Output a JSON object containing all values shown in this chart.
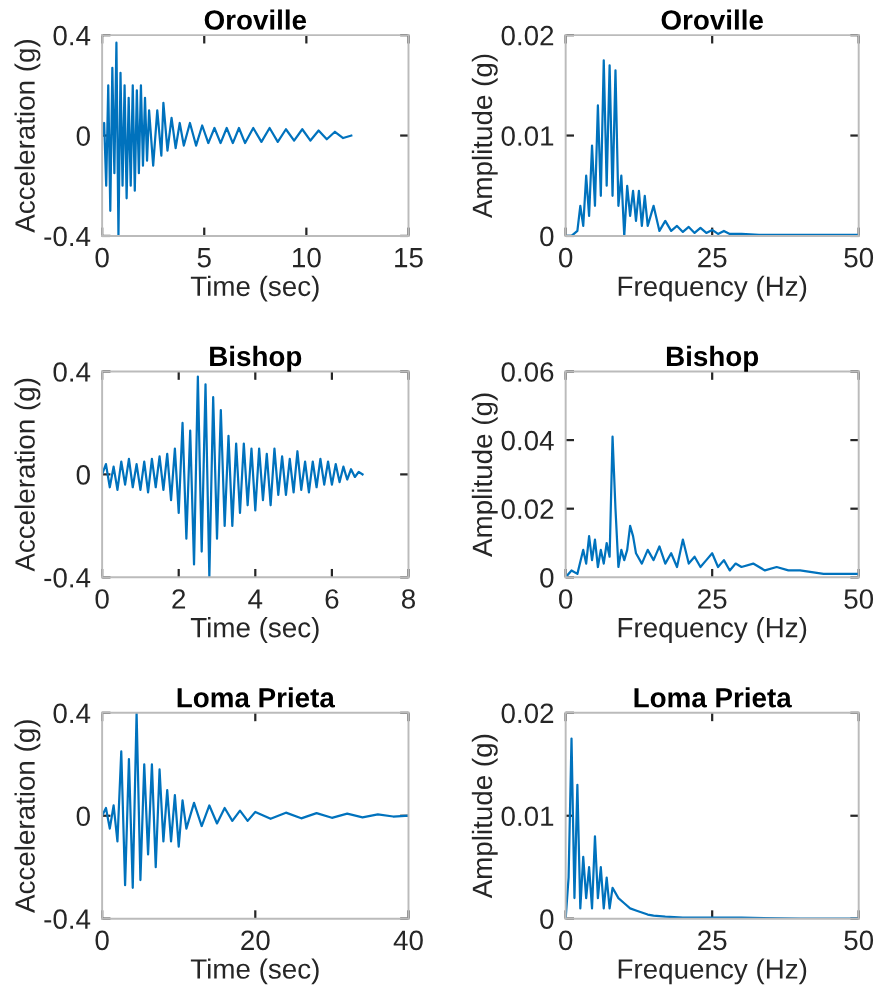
{
  "chart_data": [
    {
      "type": "line",
      "title": "Oroville",
      "xlabel": "Time (sec)",
      "ylabel": "Acceleration (g)",
      "xlim": [
        0,
        15
      ],
      "ylim": [
        -0.4,
        0.4
      ],
      "xticks": [
        0,
        5,
        10,
        15
      ],
      "yticks": [
        -0.4,
        0,
        0.4
      ],
      "series": [
        {
          "color": "#0072bd",
          "x": [
            0,
            0.1,
            0.2,
            0.3,
            0.4,
            0.5,
            0.6,
            0.7,
            0.8,
            0.9,
            1.0,
            1.1,
            1.2,
            1.3,
            1.4,
            1.5,
            1.6,
            1.7,
            1.8,
            1.9,
            2.0,
            2.1,
            2.2,
            2.3,
            2.5,
            2.7,
            2.9,
            3.0,
            3.2,
            3.4,
            3.6,
            3.8,
            4.0,
            4.3,
            4.6,
            4.9,
            5.2,
            5.5,
            5.8,
            6.1,
            6.4,
            6.7,
            7.0,
            7.4,
            7.8,
            8.2,
            8.6,
            9.0,
            9.4,
            9.8,
            10.2,
            10.6,
            11.0,
            11.4,
            11.8,
            12.2
          ],
          "values": [
            0,
            0.05,
            -0.2,
            0.2,
            -0.3,
            0.27,
            -0.15,
            0.37,
            -0.4,
            0.25,
            -0.2,
            0.2,
            -0.25,
            0.15,
            -0.2,
            0.2,
            -0.22,
            0.18,
            -0.15,
            0.2,
            -0.12,
            0.15,
            -0.1,
            0.1,
            -0.12,
            0.1,
            -0.08,
            0.13,
            -0.06,
            0.07,
            -0.05,
            0.05,
            -0.04,
            0.05,
            -0.04,
            0.04,
            -0.03,
            0.03,
            -0.03,
            0.03,
            -0.03,
            0.03,
            -0.03,
            0.03,
            -0.025,
            0.03,
            -0.025,
            0.025,
            -0.02,
            0.025,
            -0.02,
            0.02,
            -0.015,
            0.015,
            -0.01,
            0
          ]
        }
      ]
    },
    {
      "type": "line",
      "title": "Oroville",
      "xlabel": "Frequency (Hz)",
      "ylabel": "Amplitude (g)",
      "xlim": [
        0,
        50
      ],
      "ylim": [
        0,
        0.02
      ],
      "xticks": [
        0,
        25,
        50
      ],
      "yticks": [
        0,
        0.01,
        0.02
      ],
      "series": [
        {
          "color": "#0072bd",
          "x": [
            0,
            1,
            2,
            2.5,
            3,
            3.5,
            4,
            4.5,
            5,
            5.5,
            6,
            6.5,
            7,
            7.5,
            8,
            8.5,
            9,
            9.5,
            10,
            10.5,
            11,
            11.5,
            12,
            12.5,
            13,
            13.5,
            14,
            15,
            16,
            17,
            18,
            19,
            20,
            21,
            22,
            23,
            24,
            25,
            26,
            27,
            28,
            30,
            33,
            36,
            40,
            45,
            50
          ],
          "values": [
            0,
            0,
            0.0005,
            0.003,
            0.001,
            0.006,
            0.002,
            0.009,
            0.003,
            0.013,
            0.004,
            0.0175,
            0.005,
            0.017,
            0.004,
            0.0165,
            0.003,
            0.006,
            0,
            0.005,
            0.002,
            0.0045,
            0.0015,
            0.0045,
            0.001,
            0.004,
            0.001,
            0.003,
            0.0005,
            0.0015,
            0.0005,
            0.001,
            0.0004,
            0.0009,
            0.0003,
            0.0008,
            0.0003,
            0.0006,
            0.0002,
            0.0005,
            0.0002,
            0.0002,
            0.0001,
            0.0001,
            0.0001,
            0.0001,
            0.0001
          ]
        }
      ]
    },
    {
      "type": "line",
      "title": "Bishop",
      "xlabel": "Time (sec)",
      "ylabel": "Acceleration (g)",
      "xlim": [
        0,
        8
      ],
      "ylim": [
        -0.4,
        0.4
      ],
      "xticks": [
        0,
        2,
        4,
        6,
        8
      ],
      "yticks": [
        -0.4,
        0,
        0.4
      ],
      "series": [
        {
          "color": "#0072bd",
          "x": [
            0,
            0.1,
            0.2,
            0.3,
            0.4,
            0.5,
            0.6,
            0.7,
            0.8,
            0.9,
            1.0,
            1.1,
            1.2,
            1.3,
            1.4,
            1.5,
            1.6,
            1.7,
            1.8,
            1.9,
            2.0,
            2.1,
            2.2,
            2.3,
            2.4,
            2.5,
            2.6,
            2.7,
            2.8,
            2.9,
            3.0,
            3.1,
            3.2,
            3.3,
            3.4,
            3.5,
            3.6,
            3.7,
            3.8,
            3.9,
            4.0,
            4.1,
            4.2,
            4.3,
            4.4,
            4.5,
            4.6,
            4.7,
            4.8,
            4.9,
            5.0,
            5.1,
            5.2,
            5.3,
            5.4,
            5.5,
            5.6,
            5.7,
            5.8,
            5.9,
            6.0,
            6.1,
            6.2,
            6.3,
            6.4,
            6.5,
            6.6,
            6.7,
            6.8
          ],
          "values": [
            0,
            0.04,
            -0.05,
            0.03,
            -0.06,
            0.05,
            -0.04,
            0.06,
            -0.05,
            0.04,
            -0.06,
            0.05,
            -0.07,
            0.06,
            -0.05,
            0.07,
            -0.06,
            0.08,
            -0.1,
            0.1,
            -0.15,
            0.2,
            -0.25,
            0.17,
            -0.35,
            0.38,
            -0.3,
            0.35,
            -0.4,
            0.3,
            -0.25,
            0.25,
            -0.2,
            0.15,
            -0.2,
            0.12,
            -0.15,
            0.12,
            -0.12,
            0.1,
            -0.14,
            0.1,
            -0.1,
            0.08,
            -0.12,
            0.1,
            -0.08,
            0.07,
            -0.08,
            0.06,
            -0.07,
            0.09,
            -0.06,
            0.05,
            -0.07,
            0.05,
            -0.05,
            0.06,
            -0.04,
            0.05,
            -0.04,
            0.04,
            -0.03,
            0.03,
            -0.02,
            0.02,
            -0.01,
            0.01,
            0
          ]
        }
      ]
    },
    {
      "type": "line",
      "title": "Bishop",
      "xlabel": "Frequency (Hz)",
      "ylabel": "Amplitude (g)",
      "xlim": [
        0,
        50
      ],
      "ylim": [
        0,
        0.06
      ],
      "xticks": [
        0,
        25,
        50
      ],
      "yticks": [
        0,
        0.02,
        0.04,
        0.06
      ],
      "series": [
        {
          "color": "#0072bd",
          "x": [
            0,
            1,
            2,
            3,
            3.5,
            4,
            4.5,
            5,
            5.5,
            6,
            6.5,
            7,
            7.5,
            8,
            8.5,
            9,
            9.5,
            10,
            10.5,
            11,
            11.5,
            12,
            13,
            14,
            15,
            16,
            17,
            18,
            19,
            20,
            21,
            22,
            23,
            24,
            25,
            26,
            27,
            28,
            29,
            30,
            32,
            34,
            36,
            38,
            40,
            42,
            44,
            46,
            48,
            50
          ],
          "values": [
            0,
            0.002,
            0.001,
            0.008,
            0.004,
            0.012,
            0.005,
            0.011,
            0.003,
            0.008,
            0.004,
            0.01,
            0.006,
            0.041,
            0.02,
            0.003,
            0.008,
            0.005,
            0.008,
            0.015,
            0.012,
            0.007,
            0.004,
            0.008,
            0.005,
            0.009,
            0.004,
            0.007,
            0.003,
            0.011,
            0.004,
            0.006,
            0.003,
            0.005,
            0.007,
            0.003,
            0.005,
            0.002,
            0.004,
            0.003,
            0.004,
            0.002,
            0.003,
            0.002,
            0.002,
            0.0015,
            0.001,
            0.001,
            0.001,
            0.001
          ]
        }
      ]
    },
    {
      "type": "line",
      "title": "Loma Prieta",
      "xlabel": "Time (sec)",
      "ylabel": "Acceleration (g)",
      "xlim": [
        0,
        40
      ],
      "ylim": [
        -0.4,
        0.4
      ],
      "xticks": [
        0,
        20,
        40
      ],
      "yticks": [
        -0.4,
        0,
        0.4
      ],
      "series": [
        {
          "color": "#0072bd",
          "x": [
            0,
            0.5,
            1,
            1.5,
            2,
            2.5,
            3,
            3.5,
            4,
            4.5,
            5,
            5.5,
            6,
            6.5,
            7,
            7.5,
            8,
            8.5,
            9,
            9.5,
            10,
            10.5,
            11,
            12,
            13,
            14,
            15,
            16,
            17,
            18,
            19,
            20,
            22,
            24,
            26,
            28,
            30,
            32,
            34,
            36,
            38,
            40
          ],
          "values": [
            0,
            0.03,
            -0.05,
            0.04,
            -0.1,
            0.25,
            -0.27,
            0.22,
            -0.28,
            0.4,
            -0.25,
            0.2,
            -0.15,
            0.2,
            -0.2,
            0.18,
            -0.1,
            0.1,
            -0.1,
            0.08,
            -0.12,
            0.06,
            -0.05,
            0.05,
            -0.04,
            0.04,
            -0.03,
            0.03,
            -0.02,
            0.02,
            -0.02,
            0.015,
            -0.012,
            0.012,
            -0.01,
            0.01,
            -0.008,
            0.008,
            -0.006,
            0.005,
            -0.003,
            0
          ]
        }
      ]
    },
    {
      "type": "line",
      "title": "Loma Prieta",
      "xlabel": "Frequency (Hz)",
      "ylabel": "Amplitude (g)",
      "xlim": [
        0,
        50
      ],
      "ylim": [
        0,
        0.02
      ],
      "xticks": [
        0,
        25,
        50
      ],
      "yticks": [
        0,
        0.01,
        0.02
      ],
      "series": [
        {
          "color": "#0072bd",
          "x": [
            0,
            0.5,
            1,
            1.5,
            2,
            2.5,
            3,
            3.5,
            4,
            4.5,
            5,
            5.5,
            6,
            6.5,
            7,
            7.5,
            8,
            9,
            10,
            11,
            12,
            13,
            14,
            15,
            17,
            20,
            25,
            30,
            40,
            50
          ],
          "values": [
            0,
            0.004,
            0.0175,
            0.002,
            0.013,
            0.001,
            0.006,
            0.002,
            0.005,
            0.001,
            0.008,
            0.002,
            0.005,
            0.001,
            0.004,
            0.001,
            0.003,
            0.002,
            0.0015,
            0.001,
            0.0008,
            0.0006,
            0.0004,
            0.0003,
            0.0002,
            0.0001,
            0.0001,
            0.0001,
            0,
            0
          ]
        }
      ]
    }
  ]
}
